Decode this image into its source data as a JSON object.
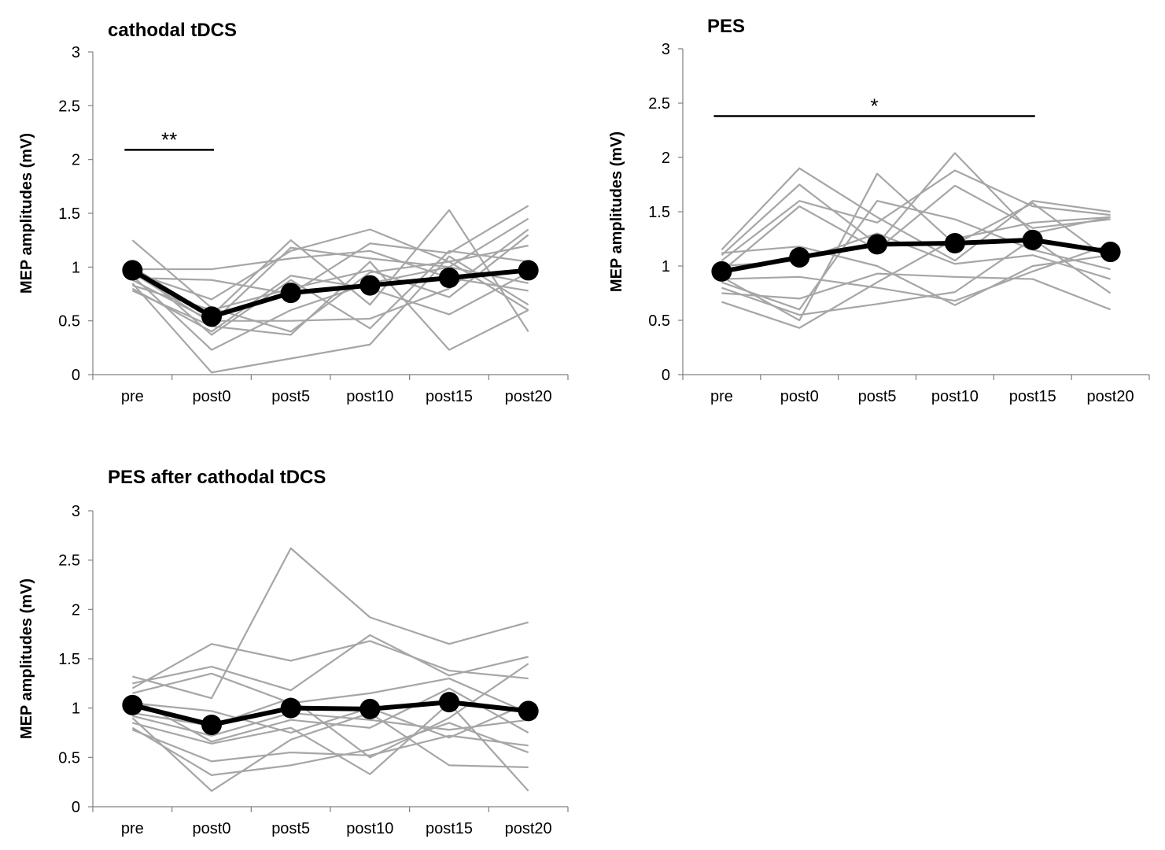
{
  "chart_data": [
    {
      "type": "line",
      "title": "cathodal tDCS",
      "ylabel": "MEP amplitudes (mV)",
      "xlabel": "",
      "categories": [
        "pre",
        "post0",
        "post5",
        "post10",
        "post15",
        "post20"
      ],
      "ylim": [
        0,
        3
      ],
      "yticks": [
        "0",
        "0.5",
        "1",
        "1.5",
        "2",
        "2.5",
        "3"
      ],
      "grid": false,
      "individual_color": "#a6a6a6",
      "mean_color": "#000000",
      "individuals": [
        [
          1.25,
          0.62,
          0.4,
          0.95,
          1.05,
          1.2
        ],
        [
          1.0,
          0.55,
          1.25,
          0.65,
          1.53,
          0.4
        ],
        [
          0.98,
          0.98,
          1.08,
          1.15,
          0.9,
          0.78
        ],
        [
          0.95,
          0.7,
          1.15,
          1.35,
          1.05,
          0.6
        ],
        [
          0.9,
          0.88,
          0.75,
          1.22,
          1.13,
          1.57
        ],
        [
          0.85,
          0.02,
          0.15,
          0.28,
          1.1,
          0.65
        ],
        [
          0.8,
          0.4,
          0.92,
          0.8,
          0.56,
          0.95
        ],
        [
          0.78,
          0.45,
          0.37,
          1.05,
          0.23,
          0.6
        ],
        [
          0.92,
          0.23,
          0.6,
          0.85,
          1.0,
          1.45
        ],
        [
          0.88,
          0.5,
          0.5,
          0.52,
          0.8,
          1.35
        ],
        [
          1.02,
          0.37,
          0.88,
          0.43,
          1.15,
          1.05
        ],
        [
          0.83,
          0.6,
          0.8,
          0.97,
          0.72,
          1.3
        ],
        [
          0.95,
          0.48,
          1.18,
          1.08,
          1.0,
          0.85
        ]
      ],
      "mean": [
        0.97,
        0.54,
        0.76,
        0.83,
        0.9,
        0.97
      ],
      "annotations": [
        {
          "text": "**",
          "from": "pre",
          "to": "post0",
          "y": 2.09
        }
      ]
    },
    {
      "type": "line",
      "title": "PES",
      "ylabel": "MEP amplitudes (mV)",
      "xlabel": "",
      "categories": [
        "pre",
        "post0",
        "post5",
        "post10",
        "post15",
        "post20"
      ],
      "ylim": [
        0,
        3
      ],
      "yticks": [
        "0",
        "0.5",
        "1",
        "1.5",
        "2",
        "2.5",
        "3"
      ],
      "grid": false,
      "individual_color": "#a6a6a6",
      "mean_color": "#000000",
      "individuals": [
        [
          1.15,
          1.9,
          1.45,
          1.05,
          1.6,
          1.5
        ],
        [
          1.1,
          1.75,
          1.2,
          2.04,
          1.3,
          1.45
        ],
        [
          1.05,
          1.6,
          1.4,
          1.88,
          1.55,
          1.47
        ],
        [
          0.95,
          1.55,
          1.15,
          1.74,
          1.35,
          1.43
        ],
        [
          0.9,
          0.5,
          1.85,
          1.2,
          1.58,
          1.05
        ],
        [
          0.85,
          0.6,
          1.6,
          1.43,
          1.15,
          0.97
        ],
        [
          0.67,
          0.43,
          0.85,
          1.25,
          1.4,
          1.45
        ],
        [
          0.8,
          0.55,
          0.65,
          0.76,
          1.25,
          0.75
        ],
        [
          1.12,
          1.18,
          1.0,
          0.64,
          1.0,
          1.1
        ],
        [
          0.75,
          0.7,
          0.93,
          0.9,
          0.88,
          0.6
        ],
        [
          1.0,
          1.05,
          1.3,
          1.02,
          1.1,
          0.88
        ],
        [
          0.88,
          0.9,
          0.8,
          0.68,
          0.95,
          1.2
        ]
      ],
      "mean": [
        0.95,
        1.08,
        1.2,
        1.21,
        1.24,
        1.13
      ],
      "annotations": [
        {
          "text": "*",
          "from": "pre",
          "to": "post15",
          "y": 2.38
        }
      ]
    },
    {
      "type": "line",
      "title": "PES after cathodal tDCS",
      "ylabel": "MEP amplitudes (mV)",
      "xlabel": "",
      "categories": [
        "pre",
        "post0",
        "post5",
        "post10",
        "post15",
        "post20"
      ],
      "ylim": [
        0,
        3
      ],
      "yticks": [
        "0",
        "0.5",
        "1",
        "1.5",
        "2",
        "2.5",
        "3"
      ],
      "grid": false,
      "individual_color": "#a6a6a6",
      "mean_color": "#000000",
      "individuals": [
        [
          1.32,
          1.1,
          2.62,
          1.92,
          1.65,
          1.87
        ],
        [
          1.25,
          1.42,
          1.18,
          1.74,
          1.33,
          1.52
        ],
        [
          1.2,
          1.65,
          1.48,
          1.68,
          1.38,
          1.3
        ],
        [
          1.15,
          1.35,
          1.05,
          1.15,
          1.3,
          0.95
        ],
        [
          0.95,
          0.82,
          1.1,
          0.5,
          0.9,
          1.45
        ],
        [
          0.9,
          0.16,
          0.68,
          0.95,
          0.42,
          0.4
        ],
        [
          0.85,
          0.64,
          0.8,
          0.33,
          1.05,
          0.16
        ],
        [
          0.8,
          0.32,
          0.42,
          0.58,
          0.85,
          0.55
        ],
        [
          1.05,
          0.97,
          0.75,
          1.0,
          0.7,
          1.05
        ],
        [
          0.78,
          0.46,
          0.55,
          0.52,
          0.72,
          0.62
        ],
        [
          1.1,
          0.66,
          0.88,
          0.8,
          1.2,
          0.75
        ],
        [
          0.92,
          0.72,
          0.95,
          0.88,
          0.78,
          0.88
        ]
      ],
      "mean": [
        1.03,
        0.83,
        1.0,
        0.99,
        1.06,
        0.97
      ],
      "annotations": []
    }
  ]
}
